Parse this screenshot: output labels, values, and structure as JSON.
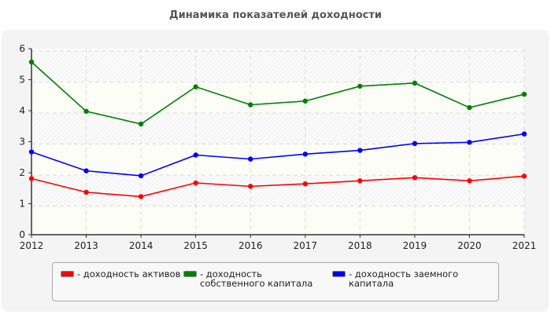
{
  "chart_data": {
    "type": "line",
    "title": "Динамика показателей доходности",
    "xlabel": "",
    "ylabel": "",
    "x": [
      2012,
      2013,
      2014,
      2015,
      2016,
      2017,
      2018,
      2019,
      2020,
      2021
    ],
    "ylim": [
      0,
      6
    ],
    "yticks": [
      0,
      1,
      2,
      3,
      4,
      5,
      6
    ],
    "grid": true,
    "legend_position": "bottom",
    "series": [
      {
        "name": "- доходность активов",
        "color": "#ff0000",
        "values": [
          1.81,
          1.37,
          1.23,
          1.67,
          1.56,
          1.64,
          1.74,
          1.84,
          1.74,
          1.89
        ]
      },
      {
        "name": "- доходность собственного капитала",
        "color": "#008000",
        "values": [
          5.57,
          3.98,
          3.57,
          4.77,
          4.19,
          4.31,
          4.79,
          4.89,
          4.1,
          4.53
        ]
      },
      {
        "name": "- доходность заемного капитала",
        "color": "#0000ff",
        "values": [
          2.67,
          2.06,
          1.9,
          2.57,
          2.44,
          2.6,
          2.72,
          2.94,
          2.98,
          3.25
        ]
      }
    ]
  }
}
